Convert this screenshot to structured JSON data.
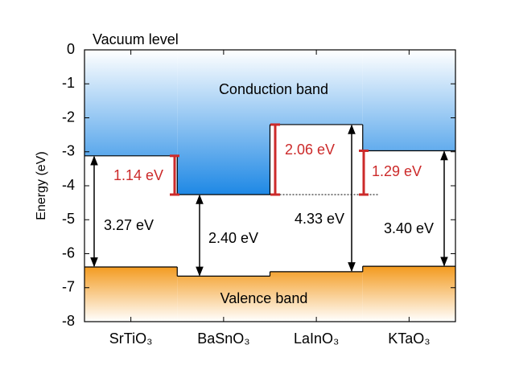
{
  "chart_data": {
    "type": "band-alignment",
    "ylabel": "Energy (eV)",
    "annotations": {
      "vacuum": "Vacuum level",
      "conduction": "Conduction band",
      "valence": "Valence band"
    },
    "categories": [
      "SrTiO₃",
      "BaSnO₃",
      "LaInO₃",
      "KTaO₃"
    ],
    "cbm": [
      -3.12,
      -4.26,
      -2.2,
      -2.97
    ],
    "vbm": [
      -6.39,
      -6.66,
      -6.53,
      -6.37
    ],
    "band_gaps": {
      "values": [
        3.27,
        2.4,
        4.33,
        3.4
      ],
      "value_labels": [
        "3.27 eV",
        "2.40 eV",
        "4.33 eV",
        "3.40 eV"
      ],
      "color": "#000000"
    },
    "offsets": {
      "values": [
        1.14,
        null,
        2.06,
        1.29
      ],
      "value_labels": [
        "1.14 eV",
        null,
        "2.06 eV",
        "1.29 eV"
      ],
      "color": "#cc2a2a"
    },
    "conduction_color": "#1e88e5",
    "valence_color": "#f39a1e",
    "ylim": [
      -8,
      0
    ],
    "yticks": [
      0,
      -1,
      -2,
      -3,
      -4,
      -5,
      -6,
      -7,
      -8
    ]
  }
}
